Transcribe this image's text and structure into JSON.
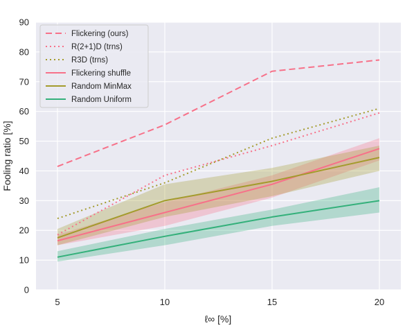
{
  "chart_data": {
    "type": "line",
    "title": "",
    "xlabel": "ℓ∞ [%]",
    "ylabel": "Fooling ratio [%]",
    "x": [
      5,
      10,
      15,
      20
    ],
    "xticks": [
      5,
      10,
      15,
      20
    ],
    "yticks": [
      0,
      10,
      20,
      30,
      40,
      50,
      60,
      70,
      80,
      90
    ],
    "xlim": [
      4,
      21
    ],
    "ylim": [
      0,
      90
    ],
    "grid": true,
    "legend_position": "top-left",
    "background": "#eaeaf2",
    "series": [
      {
        "name": "Flickering (ours)",
        "values": [
          41.5,
          55.5,
          73.5,
          77.3
        ],
        "color": "#f77189",
        "dash": "dashed"
      },
      {
        "name": "R(2+1)D (trns)",
        "values": [
          18.5,
          38.5,
          48.5,
          59.5
        ],
        "color": "#f77189",
        "dash": "dotted"
      },
      {
        "name": "R3D (trns)",
        "values": [
          24,
          36,
          51,
          61
        ],
        "color": "#a39b2c",
        "dash": "dotted"
      },
      {
        "name": "Flickering shuffle",
        "values": [
          16.5,
          26,
          35.5,
          47.5
        ],
        "lower": [
          15,
          21.5,
          31,
          43.5
        ],
        "upper": [
          18.5,
          29.5,
          38.5,
          51
        ],
        "color": "#f77189",
        "dash": "solid"
      },
      {
        "name": "Random MinMax",
        "values": [
          17.5,
          30,
          36.5,
          44.5
        ],
        "lower": [
          15,
          24.5,
          31.5,
          40
        ],
        "upper": [
          20.5,
          35.5,
          41,
          48.5
        ],
        "color": "#a39b2c",
        "dash": "solid"
      },
      {
        "name": "Random Uniform",
        "values": [
          11,
          18,
          24.5,
          30
        ],
        "lower": [
          9.5,
          15,
          21.5,
          26
        ],
        "upper": [
          13,
          20.5,
          27,
          34.5
        ],
        "color": "#33b07a",
        "dash": "solid"
      }
    ]
  }
}
